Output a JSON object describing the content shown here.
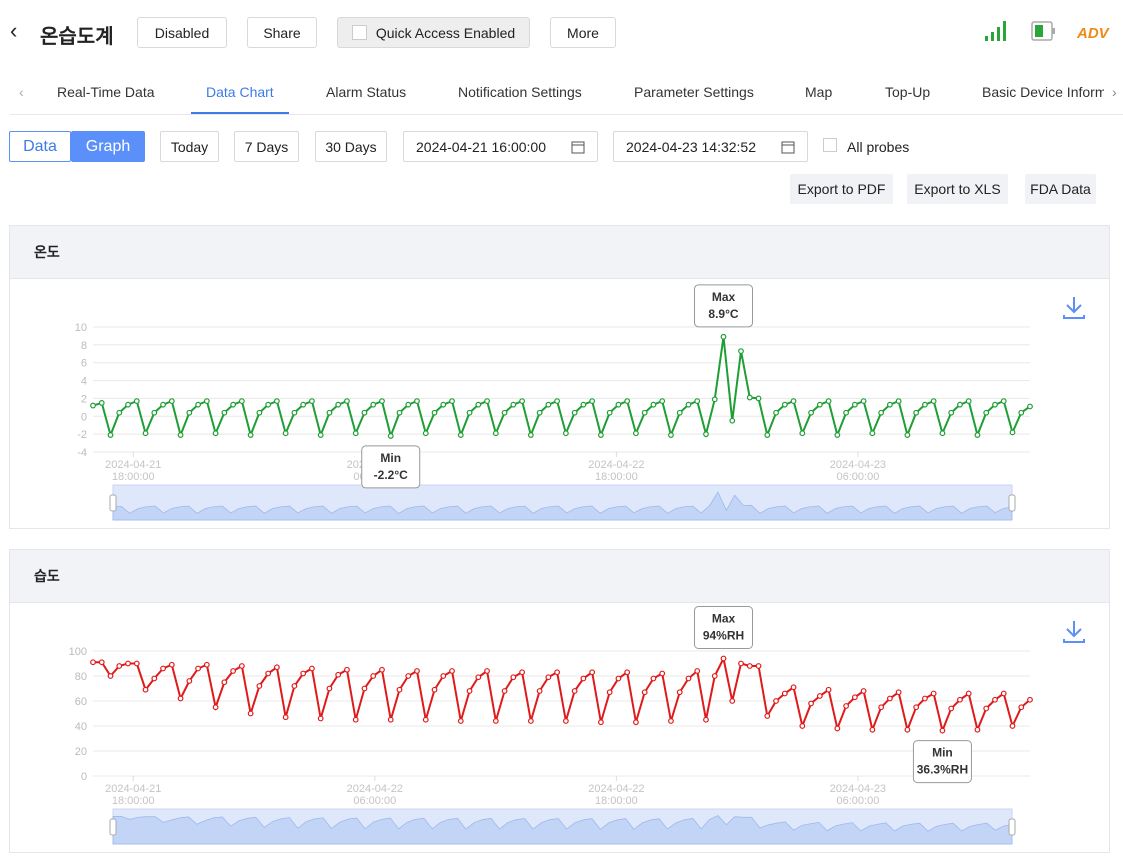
{
  "header": {
    "title": "온습도계",
    "buttons": [
      "Disabled",
      "Share",
      "Quick Access Enabled",
      "More"
    ],
    "badge": "ADV"
  },
  "tabs": [
    "Real-Time Data",
    "Data Chart",
    "Alarm Status",
    "Notification Settings",
    "Parameter Settings",
    "Map",
    "Top-Up",
    "Basic Device Inform"
  ],
  "toolbar": {
    "view": [
      "Data",
      "Graph"
    ],
    "ranges": [
      "Today",
      "7 Days",
      "30 Days"
    ],
    "start": "2024-04-21 16:00:00",
    "end": "2024-04-23 14:32:52",
    "all_probes": "All probes",
    "exports": [
      "Export to PDF",
      "Export to XLS",
      "FDA Data"
    ]
  },
  "chart_data": [
    {
      "type": "line",
      "title": "온도",
      "color": "#1e9e34",
      "grid": true,
      "xlim": [
        "2024-04-21 16:00:00",
        "2024-04-23 14:32:52"
      ],
      "xticks": [
        {
          "value": "2024-04-21 18:00:00",
          "label": [
            "2024-04-21",
            "18:00:00"
          ]
        },
        {
          "value": "2024-04-22 06:00:00",
          "label": [
            "2024-04-22",
            "06:00:00"
          ]
        },
        {
          "value": "2024-04-22 18:00:00",
          "label": [
            "2024-04-22",
            "18:00:00"
          ]
        },
        {
          "value": "2024-04-23 06:00:00",
          "label": [
            "2024-04-23",
            "06:00:00"
          ]
        }
      ],
      "ylim": [
        -4,
        10
      ],
      "yticks": [
        -4,
        -2,
        0,
        2,
        4,
        6,
        8,
        10
      ],
      "values": [
        1.2,
        1.5,
        -2.1,
        0.4,
        1.3,
        1.7,
        -1.9,
        0.4,
        1.3,
        1.7,
        -2.1,
        0.4,
        1.3,
        1.7,
        -1.9,
        0.4,
        1.3,
        1.7,
        -2.1,
        0.4,
        1.3,
        1.7,
        -1.9,
        0.4,
        1.3,
        1.7,
        -2.1,
        0.4,
        1.3,
        1.7,
        -1.9,
        0.4,
        1.3,
        1.7,
        -2.2,
        0.4,
        1.3,
        1.7,
        -1.9,
        0.4,
        1.3,
        1.7,
        -2.1,
        0.4,
        1.3,
        1.7,
        -1.9,
        0.4,
        1.3,
        1.7,
        -2.1,
        0.4,
        1.3,
        1.7,
        -1.9,
        0.4,
        1.3,
        1.7,
        -2.1,
        0.4,
        1.3,
        1.7,
        -1.9,
        0.4,
        1.3,
        1.7,
        -2.1,
        0.4,
        1.3,
        1.7,
        -2.0,
        1.9,
        8.9,
        -0.5,
        7.3,
        2.1,
        2.0,
        -2.1,
        0.4,
        1.3,
        1.7,
        -1.9,
        0.4,
        1.3,
        1.7,
        -2.1,
        0.4,
        1.3,
        1.7,
        -1.9,
        0.4,
        1.3,
        1.7,
        -2.1,
        0.4,
        1.3,
        1.7,
        -1.9,
        0.4,
        1.3,
        1.7,
        -2.1,
        0.4,
        1.3,
        1.7,
        -1.8,
        0.4,
        1.1
      ],
      "max": {
        "label": "Max",
        "value": 8.9,
        "value_label": "8.9°C"
      },
      "min": {
        "label": "Min",
        "value": -2.2,
        "value_label": "-2.2°C"
      }
    },
    {
      "type": "line",
      "title": "습도",
      "color": "#e01a1a",
      "grid": true,
      "xlim": [
        "2024-04-21 16:00:00",
        "2024-04-23 14:32:52"
      ],
      "xticks": [
        {
          "value": "2024-04-21 18:00:00",
          "label": [
            "2024-04-21",
            "18:00:00"
          ]
        },
        {
          "value": "2024-04-22 06:00:00",
          "label": [
            "2024-04-22",
            "06:00:00"
          ]
        },
        {
          "value": "2024-04-22 18:00:00",
          "label": [
            "2024-04-22",
            "18:00:00"
          ]
        },
        {
          "value": "2024-04-23 06:00:00",
          "label": [
            "2024-04-23",
            "06:00:00"
          ]
        }
      ],
      "ylim": [
        0,
        100
      ],
      "yticks": [
        0,
        20,
        40,
        60,
        80,
        100
      ],
      "values": [
        91,
        91,
        80,
        88,
        90,
        90,
        69,
        78,
        86,
        89,
        62,
        76,
        86,
        89,
        55,
        75,
        84,
        88,
        50,
        72,
        82,
        87,
        47,
        72,
        82,
        86,
        46,
        70,
        81,
        85,
        45,
        70,
        80,
        85,
        45,
        69,
        80,
        84,
        45,
        69,
        80,
        84,
        44,
        68,
        79,
        84,
        44,
        68,
        79,
        83,
        44,
        68,
        79,
        83,
        44,
        68,
        78,
        83,
        43,
        67,
        78,
        83,
        43,
        67,
        78,
        82,
        44,
        67,
        78,
        84,
        45,
        80,
        94,
        60,
        90,
        88,
        88,
        48,
        60,
        66,
        71,
        40,
        58,
        64,
        69,
        38,
        56,
        63,
        68,
        37,
        55,
        62,
        67,
        37,
        55,
        62,
        66,
        36.3,
        54,
        61,
        66,
        37,
        54,
        61,
        66,
        40,
        55,
        61
      ],
      "max": {
        "label": "Max",
        "value": 94,
        "value_label": "94%RH"
      },
      "min": {
        "label": "Min",
        "value": 36.3,
        "value_label": "36.3%RH"
      }
    }
  ]
}
